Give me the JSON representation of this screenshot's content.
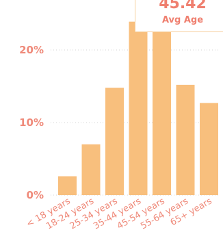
{
  "kpi": {
    "value": "45.42",
    "label": "Avg Age"
  },
  "colors": {
    "bar": "#f8bf7d",
    "text": "#ef8a7a",
    "grid": "#d6d6d6",
    "kpi_border": "#f6cf9d"
  },
  "chart_data": {
    "type": "bar",
    "categories": [
      "< 18 years",
      "18-24 years",
      "25-34 years",
      "35-44 years",
      "45-54 years",
      "55-64 years",
      "65+ years"
    ],
    "values": [
      2.6,
      7.0,
      14.8,
      23.9,
      23.7,
      15.2,
      12.7
    ],
    "yticks": [
      "0%",
      "10%",
      "20%"
    ],
    "ylim": [
      0,
      25
    ],
    "grid": true
  }
}
